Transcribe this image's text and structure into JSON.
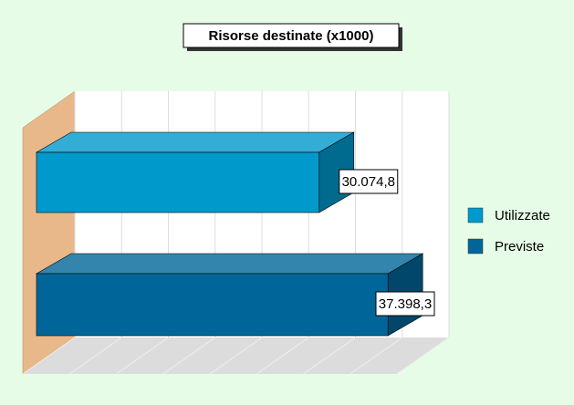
{
  "chart_data": {
    "type": "bar",
    "orientation": "horizontal",
    "three_d": true,
    "title": "Risorse destinate (x1000)",
    "series": [
      {
        "name": "Utilizzate",
        "color": "#0099cc",
        "values": [
          30074.8
        ],
        "value_labels": [
          "30.074,8"
        ]
      },
      {
        "name": "Previste",
        "color": "#006699",
        "values": [
          37398.3
        ],
        "value_labels": [
          "37.398,3"
        ]
      }
    ],
    "xlim": [
      0,
      40000
    ],
    "xticks": [
      0,
      5000,
      10000,
      15000,
      20000,
      25000,
      30000,
      35000,
      40000
    ],
    "grid": true,
    "legend": "right"
  }
}
